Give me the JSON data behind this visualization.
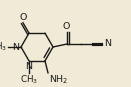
{
  "bg_color": "#f0ead6",
  "line_color": "#1a1a1a",
  "text_color": "#1a1a1a",
  "figsize": [
    1.31,
    0.87
  ],
  "dpi": 100,
  "xlim": [
    0,
    131
  ],
  "ylim": [
    0,
    87
  ]
}
